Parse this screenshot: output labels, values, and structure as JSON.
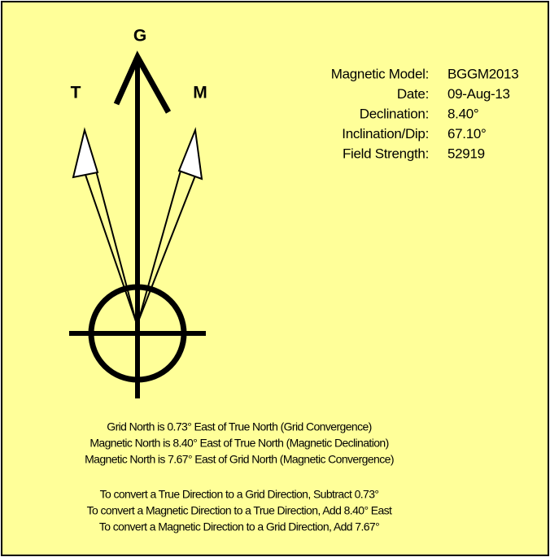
{
  "arrows": {
    "grid": "G",
    "true": "T",
    "magnetic": "M"
  },
  "info": [
    {
      "label": "Magnetic Model:",
      "value": "BGGM2013"
    },
    {
      "label": "Date:",
      "value": "09-Aug-13"
    },
    {
      "label": "Declination:",
      "value": "8.40°"
    },
    {
      "label": "Inclination/Dip:",
      "value": "67.10°"
    },
    {
      "label": "Field Strength:",
      "value": "52919"
    }
  ],
  "notes": [
    "Grid North is 0.73° East of True North (Grid Convergence)",
    "Magnetic North is 8.40° East of True North (Magnetic Declination)",
    "Magnetic North is 7.67° East of Grid North (Magnetic Convergence)"
  ],
  "conversions": [
    "To convert a True Direction to a Grid Direction, Subtract 0.73°",
    "To convert a Magnetic Direction to a True Direction, Add 8.40° East",
    "To convert a Magnetic Direction to a Grid Direction, Add 7.67°"
  ]
}
